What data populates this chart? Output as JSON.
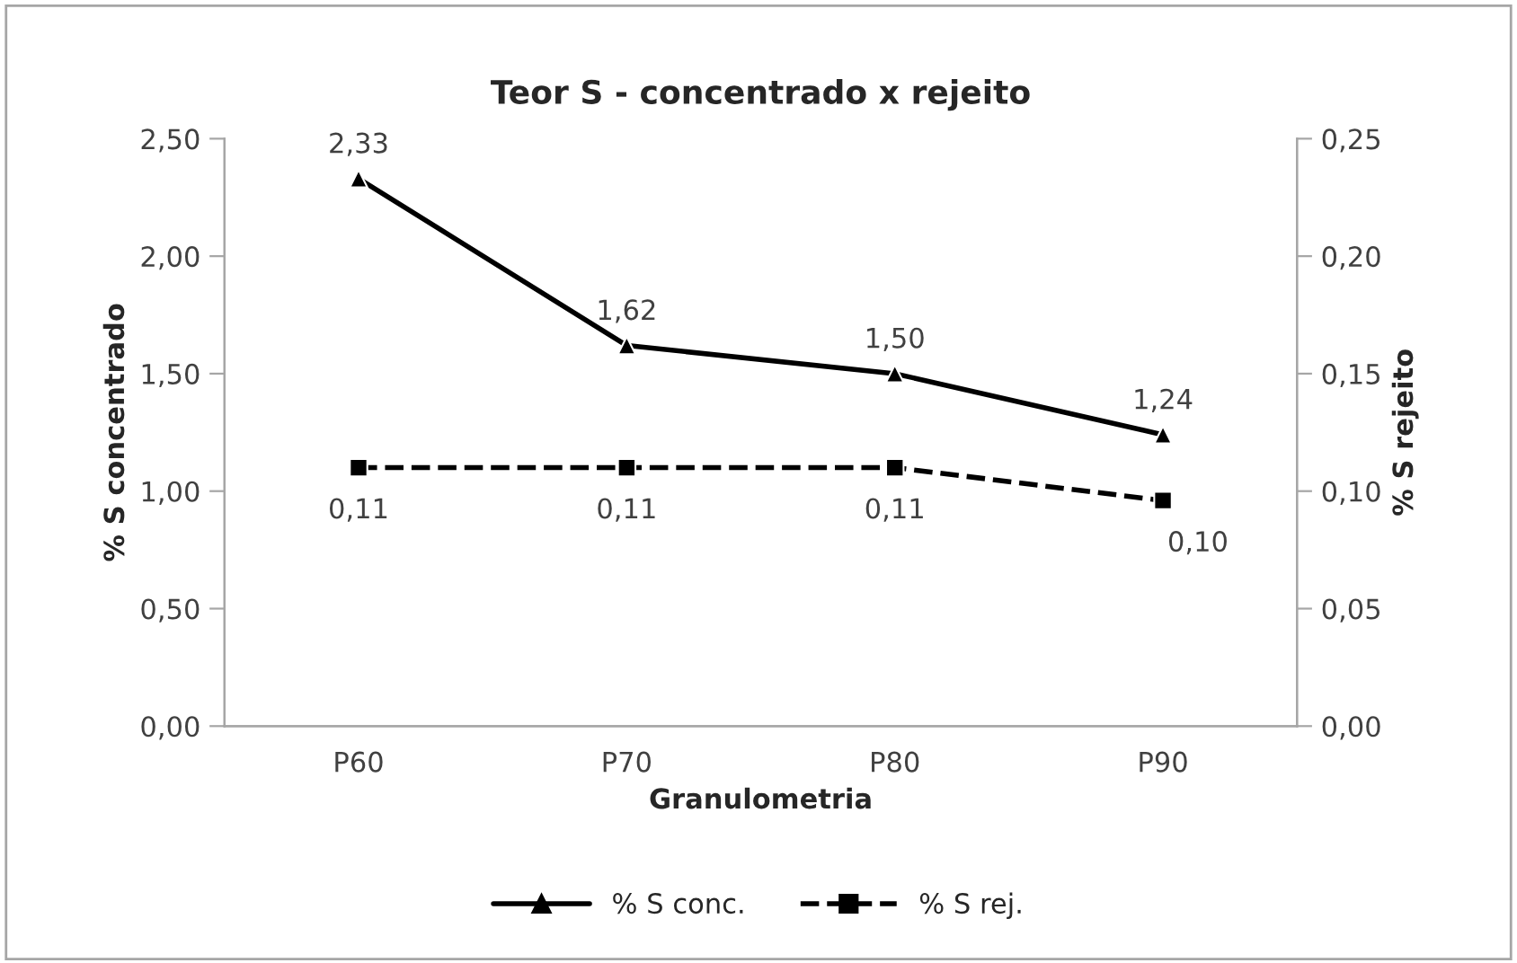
{
  "chart_data": {
    "type": "line",
    "title": "Teor S - concentrado x rejeito",
    "xlabel": "Granulometria",
    "ylabel": "% S concentrado",
    "y2label": "% S rejeito",
    "categories": [
      "P60",
      "P70",
      "P80",
      "P90"
    ],
    "series": [
      {
        "name": "% S conc.",
        "color": "#000000",
        "values": [
          2.33,
          1.62,
          1.5,
          1.24
        ],
        "value_labels": [
          "2,33",
          "1,62",
          "1,50",
          "1,24"
        ],
        "marker": "triangle",
        "line_style": "solid"
      },
      {
        "name": "% S rej.",
        "color": "#000000",
        "axis": "y2",
        "values": [
          0.11,
          0.11,
          0.11,
          0.096
        ],
        "value_labels": [
          "0,11",
          "0,11",
          "0,11",
          "0,10"
        ],
        "marker": "square",
        "line_style": "dashed"
      }
    ],
    "ylim": [
      0,
      2.5
    ],
    "yticks": [
      {
        "value": 0,
        "label": "0,00"
      },
      {
        "value": 0.5,
        "label": "0,50"
      },
      {
        "value": 1.0,
        "label": "1,00"
      },
      {
        "value": 1.5,
        "label": "1,50"
      },
      {
        "value": 2.0,
        "label": "2,00"
      },
      {
        "value": 2.5,
        "label": "2,50"
      }
    ],
    "y2lim": [
      0,
      0.25
    ],
    "y2ticks": [
      {
        "value": 0,
        "label": "0,00"
      },
      {
        "value": 0.05,
        "label": "0,05"
      },
      {
        "value": 0.1,
        "label": "0,10"
      },
      {
        "value": 0.15,
        "label": "0,15"
      },
      {
        "value": 0.2,
        "label": "0,20"
      },
      {
        "value": 0.25,
        "label": "0,25"
      }
    ],
    "grid": false,
    "legend": "bottom"
  }
}
